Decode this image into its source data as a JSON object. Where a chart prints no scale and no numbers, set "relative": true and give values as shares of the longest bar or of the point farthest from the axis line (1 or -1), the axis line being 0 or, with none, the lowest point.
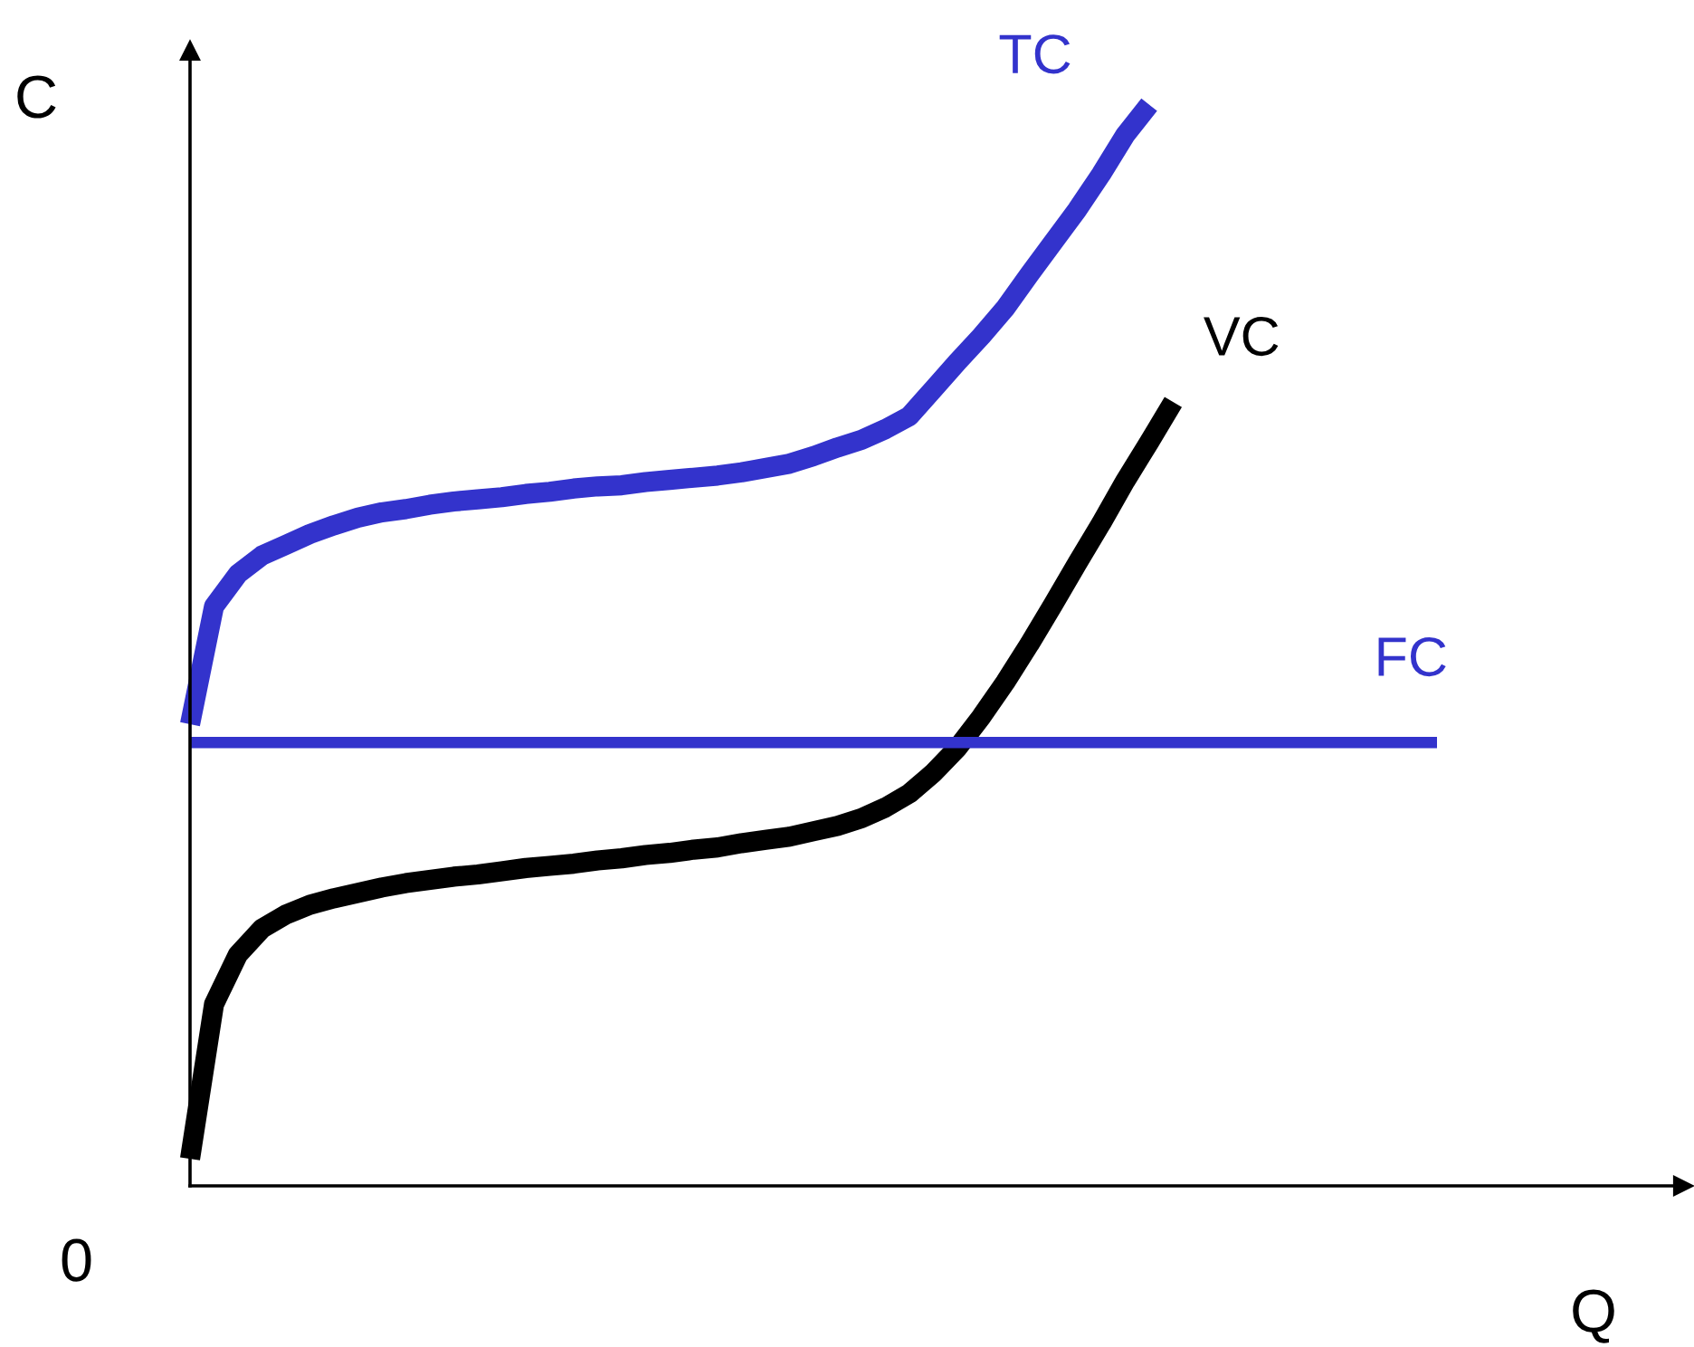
{
  "chart_data": {
    "type": "line",
    "relative": true,
    "xlabel": "Q",
    "ylabel": "C",
    "annotations": [
      "0"
    ],
    "legend": false,
    "marker": "none",
    "line_style": "solid",
    "categories": [
      null,
      null,
      null,
      null,
      null,
      null,
      null,
      null,
      null,
      null,
      null,
      null,
      null,
      null,
      null,
      null,
      null,
      null,
      null,
      null,
      null,
      null,
      null,
      null,
      null,
      null,
      null,
      null,
      null,
      null,
      null,
      null,
      null,
      null,
      null,
      null,
      null,
      null,
      null,
      null,
      null,
      null,
      null,
      null,
      null,
      null,
      null,
      null,
      null,
      null,
      null,
      null,
      null
    ],
    "series": [
      {
        "name": "TC",
        "color": "#3333cc",
        "values": [
          0.427,
          0.536,
          0.566,
          0.583,
          0.593,
          0.603,
          0.611,
          0.618,
          0.623,
          0.626,
          0.63,
          0.633,
          0.635,
          0.637,
          0.64,
          0.642,
          0.645,
          0.647,
          0.648,
          0.651,
          0.653,
          0.655,
          0.657,
          0.66,
          0.664,
          0.668,
          0.675,
          0.683,
          0.69,
          0.7,
          0.712,
          0.737,
          0.762,
          0.786,
          0.812,
          0.843,
          0.873,
          0.903,
          0.936,
          0.972,
          1.0,
          null,
          null,
          null,
          null,
          null,
          null,
          null,
          null,
          null,
          null,
          null,
          null
        ]
      },
      {
        "name": "VC",
        "color": "#000000",
        "values": [
          0.025,
          0.168,
          0.214,
          0.238,
          0.251,
          0.26,
          0.266,
          0.271,
          0.276,
          0.28,
          0.283,
          0.286,
          0.288,
          0.291,
          0.294,
          0.296,
          0.298,
          0.301,
          0.303,
          0.306,
          0.308,
          0.311,
          0.313,
          0.317,
          0.32,
          0.323,
          0.328,
          0.333,
          0.34,
          0.35,
          0.363,
          0.382,
          0.405,
          0.434,
          0.466,
          0.501,
          0.538,
          0.576,
          0.613,
          0.652,
          0.688,
          0.725,
          null,
          null,
          null,
          null,
          null,
          null,
          null,
          null,
          null,
          null,
          null
        ]
      },
      {
        "name": "FC",
        "color": "#3333cc",
        "values": [
          0.41,
          0.41,
          0.41,
          0.41,
          0.41,
          0.41,
          0.41,
          0.41,
          0.41,
          0.41,
          0.41,
          0.41,
          0.41,
          0.41,
          0.41,
          0.41,
          0.41,
          0.41,
          0.41,
          0.41,
          0.41,
          0.41,
          0.41,
          0.41,
          0.41,
          0.41,
          0.41,
          0.41,
          0.41,
          0.41,
          0.41,
          0.41,
          0.41,
          0.41,
          0.41,
          0.41,
          0.41,
          0.41,
          0.41,
          0.41,
          0.41,
          0.41,
          0.41,
          0.41,
          0.41,
          0.41,
          0.41,
          0.41,
          0.41,
          0.41,
          0.41,
          0.41,
          0.41
        ]
      }
    ]
  }
}
